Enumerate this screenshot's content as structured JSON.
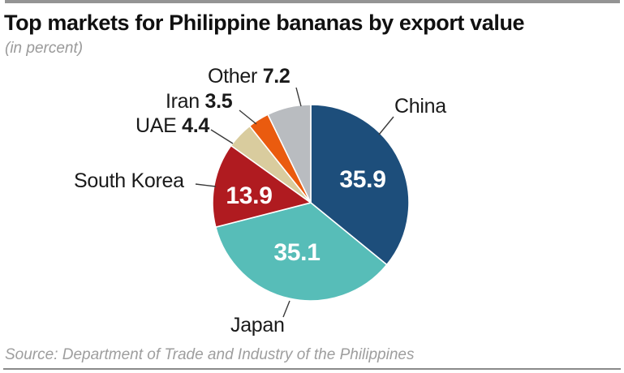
{
  "header": {
    "title": "Top markets for Philippine bananas by export value",
    "subtitle": "(in percent)"
  },
  "chart_data": {
    "type": "pie",
    "title": "Top markets for Philippine bananas by export value",
    "unit": "percent",
    "start_angle_deg": 0,
    "direction": "clockwise",
    "total": 100.0,
    "slices": [
      {
        "label": "China",
        "value": 35.9,
        "color": "#1d4e7b",
        "value_position": "inside"
      },
      {
        "label": "Japan",
        "value": 35.1,
        "color": "#57bdb8",
        "value_position": "inside"
      },
      {
        "label": "South Korea",
        "value": 13.9,
        "color": "#b01b20",
        "value_position": "inside"
      },
      {
        "label": "UAE",
        "value": 4.4,
        "color": "#d9cc9e",
        "value_position": "callout"
      },
      {
        "label": "Iran",
        "value": 3.5,
        "color": "#ea5b0f",
        "value_position": "callout"
      },
      {
        "label": "Other",
        "value": 7.2,
        "color": "#b9bcc0",
        "value_position": "callout"
      }
    ]
  },
  "footer": {
    "source": "Source: Department of Trade and Industry of the Philippines"
  }
}
